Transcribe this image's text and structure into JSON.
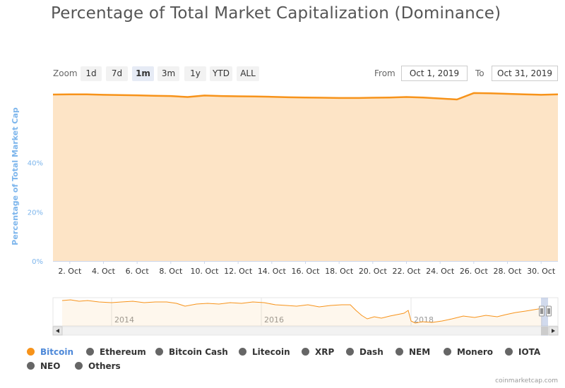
{
  "title": "Percentage of Total Market Capitalization (Dominance)",
  "zoom": {
    "label": "Zoom",
    "buttons": [
      "1d",
      "7d",
      "1m",
      "3m",
      "1y",
      "YTD",
      "ALL"
    ],
    "active": "1m"
  },
  "range": {
    "from_label": "From",
    "from_value": "Oct 1, 2019",
    "to_label": "To",
    "to_value": "Oct 31, 2019"
  },
  "colors": {
    "bitcoin_line": "#f7931a",
    "bitcoin_fill": "#fde4c6",
    "axis_label": "#7cb5ec",
    "legend_inactive": "#666666"
  },
  "chart_data": {
    "type": "area",
    "title": "Percentage of Total Market Capitalization (Dominance)",
    "ylabel": "Percentage of Total Market Cap",
    "ylim": [
      0,
      70
    ],
    "yticks": [
      0,
      20,
      40
    ],
    "ytick_labels": [
      "0%",
      "20%",
      "40%"
    ],
    "grid": true,
    "xlim": [
      "2019-10-01",
      "2019-10-31"
    ],
    "xtick_labels": [
      "2. Oct",
      "4. Oct",
      "6. Oct",
      "8. Oct",
      "10. Oct",
      "12. Oct",
      "14. Oct",
      "16. Oct",
      "18. Oct",
      "20. Oct",
      "22. Oct",
      "24. Oct",
      "26. Oct",
      "28. Oct",
      "30. Oct"
    ],
    "series": [
      {
        "name": "Bitcoin",
        "x": [
          "2019-10-01",
          "2019-10-02",
          "2019-10-03",
          "2019-10-04",
          "2019-10-05",
          "2019-10-06",
          "2019-10-07",
          "2019-10-08",
          "2019-10-09",
          "2019-10-10",
          "2019-10-11",
          "2019-10-12",
          "2019-10-13",
          "2019-10-14",
          "2019-10-15",
          "2019-10-16",
          "2019-10-17",
          "2019-10-18",
          "2019-10-19",
          "2019-10-20",
          "2019-10-21",
          "2019-10-22",
          "2019-10-23",
          "2019-10-24",
          "2019-10-25",
          "2019-10-26",
          "2019-10-27",
          "2019-10-28",
          "2019-10-29",
          "2019-10-30",
          "2019-10-31"
        ],
        "y": [
          67.7,
          67.8,
          67.8,
          67.6,
          67.5,
          67.4,
          67.2,
          67.1,
          66.7,
          67.3,
          67.1,
          67.0,
          66.9,
          66.8,
          66.6,
          66.5,
          66.4,
          66.3,
          66.3,
          66.4,
          66.5,
          66.7,
          66.5,
          66.1,
          65.7,
          68.3,
          68.2,
          68.0,
          67.8,
          67.6,
          67.8
        ]
      }
    ],
    "navigator": {
      "xtick_labels": [
        "2014",
        "2016",
        "2018"
      ]
    },
    "legend_position": "bottom"
  },
  "legend": [
    {
      "name": "Bitcoin",
      "color": "#f7931a",
      "active": true
    },
    {
      "name": "Ethereum",
      "color": "#666666",
      "active": false
    },
    {
      "name": "Bitcoin Cash",
      "color": "#666666",
      "active": false
    },
    {
      "name": "Litecoin",
      "color": "#666666",
      "active": false
    },
    {
      "name": "XRP",
      "color": "#666666",
      "active": false
    },
    {
      "name": "Dash",
      "color": "#666666",
      "active": false
    },
    {
      "name": "NEM",
      "color": "#666666",
      "active": false
    },
    {
      "name": "Monero",
      "color": "#666666",
      "active": false
    },
    {
      "name": "IOTA",
      "color": "#666666",
      "active": false
    },
    {
      "name": "NEO",
      "color": "#666666",
      "active": false
    },
    {
      "name": "Others",
      "color": "#666666",
      "active": false
    }
  ],
  "credit": "coinmarketcap.com"
}
